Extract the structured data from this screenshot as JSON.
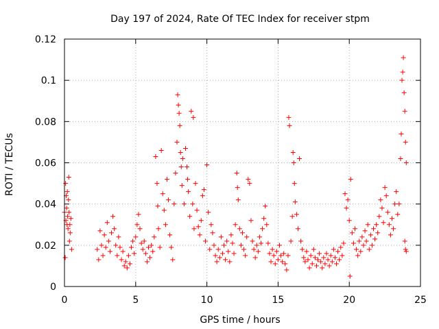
{
  "chart_data": {
    "type": "scatter",
    "title": "Day 197 of 2024, Rate Of TEC Index for receiver stpm",
    "xlabel": "GPS time / hours",
    "ylabel": "ROTI / TECUs",
    "xlim": [
      0,
      25
    ],
    "ylim": [
      0,
      0.12
    ],
    "x_ticks": [
      0,
      5,
      10,
      15,
      20,
      25
    ],
    "x_tick_labels": [
      "0",
      "5",
      "10",
      "15",
      "20",
      "25"
    ],
    "y_ticks": [
      0,
      0.02,
      0.04,
      0.06,
      0.08,
      0.1,
      0.12
    ],
    "y_tick_labels": [
      "0",
      "0.02",
      "0.04",
      "0.06",
      "0.08",
      "0.1",
      "0.12"
    ],
    "grid": true,
    "marker": "+",
    "marker_color": "#ff0000",
    "series": [
      {
        "name": "ROTI",
        "points": [
          [
            0.0,
            0.036
          ],
          [
            0.05,
            0.014
          ],
          [
            0.08,
            0.05
          ],
          [
            0.1,
            0.032
          ],
          [
            0.12,
            0.044
          ],
          [
            0.15,
            0.038
          ],
          [
            0.18,
            0.03
          ],
          [
            0.2,
            0.046
          ],
          [
            0.22,
            0.034
          ],
          [
            0.25,
            0.028
          ],
          [
            0.28,
            0.042
          ],
          [
            0.3,
            0.053
          ],
          [
            0.32,
            0.036
          ],
          [
            0.35,
            0.022
          ],
          [
            0.38,
            0.03
          ],
          [
            0.4,
            0.026
          ],
          [
            0.45,
            0.033
          ],
          [
            0.5,
            0.018
          ],
          [
            2.3,
            0.018
          ],
          [
            2.4,
            0.013
          ],
          [
            2.5,
            0.027
          ],
          [
            2.6,
            0.02
          ],
          [
            2.7,
            0.015
          ],
          [
            2.8,
            0.025
          ],
          [
            2.9,
            0.019
          ],
          [
            3.0,
            0.031
          ],
          [
            3.1,
            0.022
          ],
          [
            3.2,
            0.017
          ],
          [
            3.3,
            0.026
          ],
          [
            3.4,
            0.034
          ],
          [
            3.5,
            0.028
          ],
          [
            3.6,
            0.02
          ],
          [
            3.7,
            0.015
          ],
          [
            3.8,
            0.024
          ],
          [
            3.9,
            0.019
          ],
          [
            4.0,
            0.013
          ],
          [
            4.1,
            0.017
          ],
          [
            4.2,
            0.01
          ],
          [
            4.3,
            0.012
          ],
          [
            4.4,
            0.009
          ],
          [
            4.5,
            0.015
          ],
          [
            4.6,
            0.011
          ],
          [
            4.7,
            0.019
          ],
          [
            4.8,
            0.022
          ],
          [
            4.9,
            0.016
          ],
          [
            5.0,
            0.024
          ],
          [
            5.1,
            0.03
          ],
          [
            5.2,
            0.035
          ],
          [
            5.3,
            0.028
          ],
          [
            5.4,
            0.021
          ],
          [
            5.5,
            0.018
          ],
          [
            5.6,
            0.022
          ],
          [
            5.7,
            0.016
          ],
          [
            5.8,
            0.012
          ],
          [
            5.9,
            0.019
          ],
          [
            6.0,
            0.014
          ],
          [
            6.1,
            0.02
          ],
          [
            6.2,
            0.017
          ],
          [
            6.3,
            0.024
          ],
          [
            6.4,
            0.063
          ],
          [
            6.5,
            0.05
          ],
          [
            6.55,
            0.039
          ],
          [
            6.6,
            0.028
          ],
          [
            6.7,
            0.019
          ],
          [
            6.8,
            0.066
          ],
          [
            6.9,
            0.045
          ],
          [
            7.0,
            0.037
          ],
          [
            7.1,
            0.03
          ],
          [
            7.2,
            0.052
          ],
          [
            7.3,
            0.042
          ],
          [
            7.4,
            0.025
          ],
          [
            7.5,
            0.019
          ],
          [
            7.6,
            0.013
          ],
          [
            7.7,
            0.04
          ],
          [
            7.8,
            0.055
          ],
          [
            7.9,
            0.07
          ],
          [
            7.95,
            0.093
          ],
          [
            8.0,
            0.088
          ],
          [
            8.05,
            0.084
          ],
          [
            8.1,
            0.078
          ],
          [
            8.15,
            0.065
          ],
          [
            8.2,
            0.058
          ],
          [
            8.25,
            0.049
          ],
          [
            8.3,
            0.062
          ],
          [
            8.4,
            0.04
          ],
          [
            8.5,
            0.067
          ],
          [
            8.6,
            0.058
          ],
          [
            8.65,
            0.052
          ],
          [
            8.7,
            0.046
          ],
          [
            8.8,
            0.034
          ],
          [
            8.9,
            0.085
          ],
          [
            9.0,
            0.04
          ],
          [
            9.05,
            0.082
          ],
          [
            9.1,
            0.028
          ],
          [
            9.2,
            0.05
          ],
          [
            9.3,
            0.037
          ],
          [
            9.4,
            0.029
          ],
          [
            9.5,
            0.025
          ],
          [
            9.6,
            0.032
          ],
          [
            9.7,
            0.044
          ],
          [
            9.8,
            0.047
          ],
          [
            9.9,
            0.022
          ],
          [
            10.0,
            0.059
          ],
          [
            10.1,
            0.036
          ],
          [
            10.2,
            0.018
          ],
          [
            10.3,
            0.03
          ],
          [
            10.4,
            0.026
          ],
          [
            10.5,
            0.02
          ],
          [
            10.6,
            0.015
          ],
          [
            10.7,
            0.012
          ],
          [
            10.8,
            0.018
          ],
          [
            10.9,
            0.014
          ],
          [
            11.0,
            0.024
          ],
          [
            11.1,
            0.016
          ],
          [
            11.2,
            0.02
          ],
          [
            11.3,
            0.013
          ],
          [
            11.4,
            0.022
          ],
          [
            11.5,
            0.017
          ],
          [
            11.6,
            0.012
          ],
          [
            11.7,
            0.025
          ],
          [
            11.8,
            0.021
          ],
          [
            11.9,
            0.016
          ],
          [
            12.0,
            0.03
          ],
          [
            12.1,
            0.055
          ],
          [
            12.15,
            0.048
          ],
          [
            12.2,
            0.042
          ],
          [
            12.3,
            0.028
          ],
          [
            12.4,
            0.02
          ],
          [
            12.5,
            0.026
          ],
          [
            12.6,
            0.018
          ],
          [
            12.7,
            0.015
          ],
          [
            12.8,
            0.024
          ],
          [
            12.9,
            0.052
          ],
          [
            13.0,
            0.05
          ],
          [
            13.1,
            0.032
          ],
          [
            13.2,
            0.022
          ],
          [
            13.3,
            0.018
          ],
          [
            13.4,
            0.014
          ],
          [
            13.5,
            0.02
          ],
          [
            13.6,
            0.017
          ],
          [
            13.7,
            0.024
          ],
          [
            13.8,
            0.021
          ],
          [
            13.9,
            0.028
          ],
          [
            14.0,
            0.033
          ],
          [
            14.1,
            0.039
          ],
          [
            14.2,
            0.03
          ],
          [
            14.3,
            0.021
          ],
          [
            14.4,
            0.016
          ],
          [
            14.5,
            0.012
          ],
          [
            14.6,
            0.018
          ],
          [
            14.7,
            0.015
          ],
          [
            14.8,
            0.011
          ],
          [
            14.9,
            0.017
          ],
          [
            15.0,
            0.013
          ],
          [
            15.1,
            0.02
          ],
          [
            15.2,
            0.015
          ],
          [
            15.3,
            0.012
          ],
          [
            15.4,
            0.016
          ],
          [
            15.5,
            0.011
          ],
          [
            15.6,
            0.008
          ],
          [
            15.7,
            0.015
          ],
          [
            15.75,
            0.082
          ],
          [
            15.8,
            0.078
          ],
          [
            15.9,
            0.022
          ],
          [
            16.0,
            0.034
          ],
          [
            16.05,
            0.065
          ],
          [
            16.1,
            0.06
          ],
          [
            16.15,
            0.05
          ],
          [
            16.2,
            0.041
          ],
          [
            16.3,
            0.035
          ],
          [
            16.4,
            0.028
          ],
          [
            16.5,
            0.062
          ],
          [
            16.6,
            0.022
          ],
          [
            16.7,
            0.018
          ],
          [
            16.8,
            0.014
          ],
          [
            16.9,
            0.012
          ],
          [
            17.0,
            0.017
          ],
          [
            17.1,
            0.013
          ],
          [
            17.2,
            0.009
          ],
          [
            17.3,
            0.015
          ],
          [
            17.4,
            0.011
          ],
          [
            17.5,
            0.018
          ],
          [
            17.6,
            0.014
          ],
          [
            17.7,
            0.01
          ],
          [
            17.8,
            0.013
          ],
          [
            17.9,
            0.016
          ],
          [
            18.0,
            0.012
          ],
          [
            18.1,
            0.009
          ],
          [
            18.2,
            0.014
          ],
          [
            18.3,
            0.011
          ],
          [
            18.4,
            0.016
          ],
          [
            18.5,
            0.013
          ],
          [
            18.6,
            0.01
          ],
          [
            18.7,
            0.015
          ],
          [
            18.8,
            0.012
          ],
          [
            18.9,
            0.018
          ],
          [
            19.0,
            0.014
          ],
          [
            19.1,
            0.011
          ],
          [
            19.2,
            0.017
          ],
          [
            19.3,
            0.013
          ],
          [
            19.4,
            0.019
          ],
          [
            19.5,
            0.015
          ],
          [
            19.6,
            0.021
          ],
          [
            19.7,
            0.045
          ],
          [
            19.8,
            0.038
          ],
          [
            19.9,
            0.042
          ],
          [
            20.0,
            0.032
          ],
          [
            20.05,
            0.005
          ],
          [
            20.1,
            0.052
          ],
          [
            20.2,
            0.026
          ],
          [
            20.3,
            0.021
          ],
          [
            20.4,
            0.028
          ],
          [
            20.5,
            0.018
          ],
          [
            20.6,
            0.015
          ],
          [
            20.7,
            0.022
          ],
          [
            20.8,
            0.017
          ],
          [
            20.9,
            0.024
          ],
          [
            21.0,
            0.02
          ],
          [
            21.1,
            0.027
          ],
          [
            21.2,
            0.022
          ],
          [
            21.3,
            0.03
          ],
          [
            21.4,
            0.018
          ],
          [
            21.5,
            0.025
          ],
          [
            21.6,
            0.02
          ],
          [
            21.7,
            0.028
          ],
          [
            21.8,
            0.023
          ],
          [
            21.9,
            0.03
          ],
          [
            22.0,
            0.026
          ],
          [
            22.1,
            0.034
          ],
          [
            22.2,
            0.042
          ],
          [
            22.3,
            0.038
          ],
          [
            22.4,
            0.031
          ],
          [
            22.5,
            0.048
          ],
          [
            22.6,
            0.044
          ],
          [
            22.7,
            0.036
          ],
          [
            22.8,
            0.03
          ],
          [
            22.9,
            0.025
          ],
          [
            23.0,
            0.033
          ],
          [
            23.1,
            0.028
          ],
          [
            23.2,
            0.04
          ],
          [
            23.3,
            0.046
          ],
          [
            23.4,
            0.035
          ],
          [
            23.5,
            0.04
          ],
          [
            23.6,
            0.062
          ],
          [
            23.65,
            0.074
          ],
          [
            23.7,
            0.1
          ],
          [
            23.75,
            0.104
          ],
          [
            23.8,
            0.111
          ],
          [
            23.85,
            0.094
          ],
          [
            23.9,
            0.085
          ],
          [
            23.95,
            0.07
          ],
          [
            24.0,
            0.06
          ],
          [
            23.9,
            0.022
          ],
          [
            23.95,
            0.018
          ],
          [
            24.0,
            0.017
          ]
        ]
      }
    ]
  }
}
